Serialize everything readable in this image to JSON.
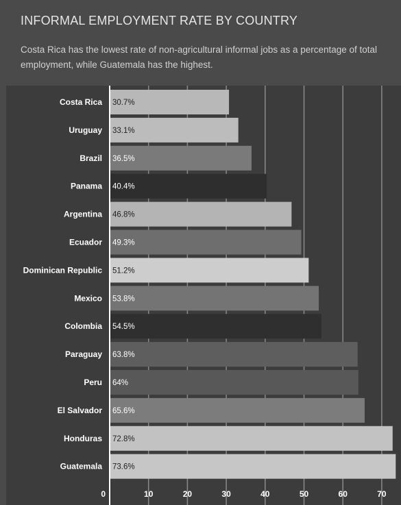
{
  "chart_data": {
    "type": "bar",
    "orientation": "horizontal",
    "title": "INFORMAL EMPLOYMENT RATE BY COUNTRY",
    "subtitle": "Costa Rica has the lowest rate of non-agricultural informal jobs as a percentage of total employment, while Guatemala has the highest.",
    "categories": [
      "Costa Rica",
      "Uruguay",
      "Brazil",
      "Panama",
      "Argentina",
      "Ecuador",
      "Dominican Republic",
      "Mexico",
      "Colombia",
      "Paraguay",
      "Peru",
      "El Salvador",
      "Honduras",
      "Guatemala"
    ],
    "values": [
      30.7,
      33.1,
      36.5,
      40.4,
      46.8,
      49.3,
      51.2,
      53.8,
      54.5,
      63.8,
      64,
      65.6,
      72.8,
      73.6
    ],
    "value_labels": [
      "30.7%",
      "33.1%",
      "36.5%",
      "40.4%",
      "46.8%",
      "49.3%",
      "51.2%",
      "53.8%",
      "54.5%",
      "63.8%",
      "64%",
      "65.6%",
      "72.8%",
      "73.6%"
    ],
    "bar_colors": [
      "#b8b8b8",
      "#bcbcbc",
      "#7a7a7a",
      "#2e2e2e",
      "#b4b4b4",
      "#6e6e6e",
      "#cdcdcd",
      "#747474",
      "#2f2f2f",
      "#5e5e5e",
      "#585858",
      "#7c7c7c",
      "#c2c2c2",
      "#c6c6c6"
    ],
    "value_label_colors": [
      "#222222",
      "#222222",
      "#ffffff",
      "#ffffff",
      "#222222",
      "#ffffff",
      "#222222",
      "#ffffff",
      "#ffffff",
      "#ffffff",
      "#ffffff",
      "#ffffff",
      "#222222",
      "#222222"
    ],
    "xticks": [
      0,
      10,
      20,
      30,
      40,
      50,
      60,
      70
    ],
    "xlim": [
      0,
      74
    ],
    "grid": true
  }
}
